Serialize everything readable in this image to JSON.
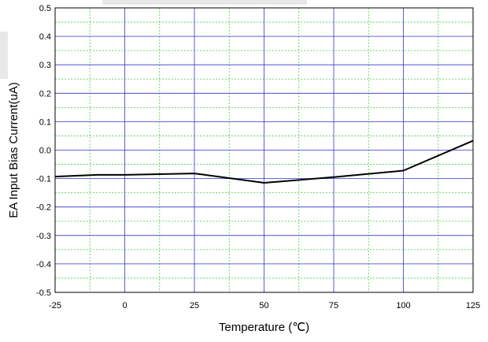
{
  "chart_data": {
    "type": "line",
    "xlabel": "Temperature (℃)",
    "ylabel": "EA Input Bias Current(uA)",
    "xlim": [
      -25,
      125
    ],
    "ylim": [
      -0.5,
      0.5
    ],
    "x_ticks": [
      -25,
      0,
      25,
      50,
      75,
      100,
      125
    ],
    "y_ticks": [
      -0.5,
      -0.4,
      -0.3,
      -0.2,
      -0.1,
      0.0,
      0.1,
      0.2,
      0.3,
      0.4,
      0.5
    ],
    "x_tick_labels": [
      "-25",
      "0",
      "25",
      "50",
      "75",
      "100",
      "125"
    ],
    "y_tick_labels": [
      "-0.5",
      "-0.4",
      "-0.3",
      "-0.2",
      "-0.1",
      "0.0",
      "0.1",
      "0.2",
      "0.3",
      "0.4",
      "0.5"
    ],
    "grid": {
      "major": true,
      "minor": true,
      "major_color": "#3333cc",
      "minor_color": "#44cc44"
    },
    "series": [
      {
        "color": "#000000",
        "x": [
          -25,
          -10,
          0,
          25,
          50,
          75,
          100,
          125
        ],
        "y": [
          -0.093,
          -0.087,
          -0.087,
          -0.082,
          -0.115,
          -0.095,
          -0.072,
          0.033
        ]
      }
    ]
  }
}
